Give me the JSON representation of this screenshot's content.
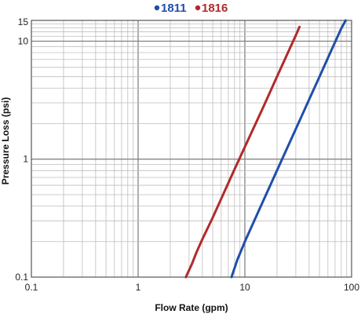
{
  "chart_data": {
    "type": "line",
    "title": "",
    "xlabel": "Flow Rate (gpm)",
    "ylabel": "Pressure Loss (psi)",
    "x_scale": "log",
    "y_scale": "log",
    "xlim": [
      0.1,
      100
    ],
    "ylim": [
      0.1,
      15
    ],
    "grid": true,
    "legend_position": "top",
    "x_tick_labels": [
      "0.1",
      "1",
      "10",
      "100"
    ],
    "y_tick_labels": [
      "0.1",
      "1",
      "10",
      "15"
    ],
    "x_ticks": [
      0.1,
      1,
      10,
      100
    ],
    "y_ticks": [
      0.1,
      1,
      10,
      15
    ],
    "series": [
      {
        "name": "1811",
        "color": "#1f4fa8",
        "x": [
          7.5,
          8.5,
          10,
          15,
          20,
          30,
          40,
          50,
          60,
          70,
          80,
          88
        ],
        "y": [
          0.1,
          0.14,
          0.2,
          0.45,
          0.8,
          1.8,
          3.2,
          5.0,
          7.2,
          9.8,
          12.8,
          15.0
        ]
      },
      {
        "name": "1816",
        "color": "#b22a2a",
        "x": [
          2.8,
          3.2,
          3.5,
          4,
          5,
          6,
          8,
          10,
          15,
          20,
          25,
          30,
          32.5
        ],
        "y": [
          0.1,
          0.13,
          0.16,
          0.21,
          0.32,
          0.46,
          0.82,
          1.27,
          2.8,
          5.0,
          7.8,
          11.2,
          13.2
        ]
      }
    ]
  }
}
